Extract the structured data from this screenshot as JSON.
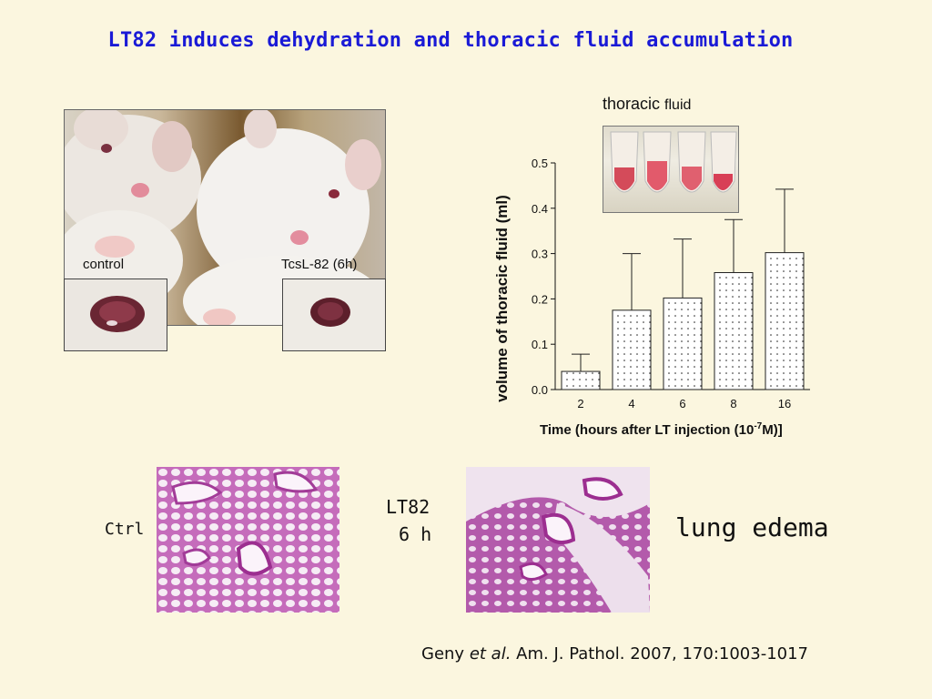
{
  "slide": {
    "title": "LT82 induces dehydration and thoracic fluid accumulation",
    "photo": {
      "label_control": "control",
      "label_treated": "TcsL-82 (6h)"
    },
    "tube_caption_main": "thoracic",
    "tube_caption_small": "fluid",
    "histology": {
      "ctrl_label": "Ctrl",
      "lt_label_line1": "LT82",
      "lt_label_line2": "6 h",
      "edema_label": "lung edema"
    },
    "reference": {
      "authors": "Geny",
      "etal": "et al.",
      "journal": "Am. J. Pathol. 2007, 170:1003-1017"
    }
  },
  "chart_data": {
    "type": "bar",
    "categories": [
      "2",
      "4",
      "6",
      "8",
      "16"
    ],
    "values": [
      0.04,
      0.175,
      0.202,
      0.258,
      0.302
    ],
    "errors": [
      0.038,
      0.125,
      0.13,
      0.117,
      0.14
    ],
    "ylabel": "volume of thoracic fluid (ml)",
    "xlabel_prefix": "Time (hours after LT injection (10",
    "xlabel_sup": "-7",
    "xlabel_suffix": "M)]",
    "yticks": [
      "0.0",
      "0.1",
      "0.2",
      "0.3",
      "0.4",
      "0.5"
    ],
    "ylim": [
      0,
      0.5
    ],
    "bar_pattern": "dotted"
  }
}
